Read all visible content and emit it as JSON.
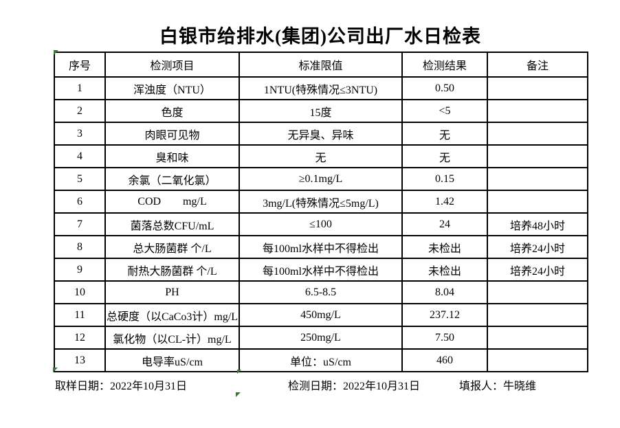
{
  "page": {
    "title": "白银市给排水(集团)公司出厂水日检表"
  },
  "table": {
    "headers": [
      "序号",
      "检测项目",
      "标准限值",
      "检测结果",
      "备注"
    ],
    "rows": [
      {
        "no": "1",
        "item": "浑浊度（NTU）",
        "limit": "1NTU(特殊情况≤3NTU)",
        "result": "0.50",
        "remark": ""
      },
      {
        "no": "2",
        "item": "色度",
        "limit": "15度",
        "result": "<5",
        "remark": ""
      },
      {
        "no": "3",
        "item": "肉眼可见物",
        "limit": "无异臭、异味",
        "result": "无",
        "remark": ""
      },
      {
        "no": "4",
        "item": "臭和味",
        "limit": "无",
        "result": "无",
        "remark": ""
      },
      {
        "no": "5",
        "item": "余氯（二氧化氯）",
        "limit": "≥0.1mg/L",
        "result": "0.15",
        "remark": ""
      },
      {
        "no": "6",
        "item": "COD        mg/L",
        "limit": "3mg/L(特殊情况≤5mg/L)",
        "result": "1.42",
        "remark": ""
      },
      {
        "no": "7",
        "item": "菌落总数CFU/mL",
        "limit": "≤100",
        "result": "24",
        "remark": "培养48小时"
      },
      {
        "no": "8",
        "item": "总大肠菌群 个/L",
        "limit": "每100ml水样中不得检出",
        "result": "未检出",
        "remark": "培养24小时"
      },
      {
        "no": "9",
        "item": "耐热大肠菌群 个/L",
        "limit": "每100ml水样中不得检出",
        "result": "未检出",
        "remark": "培养24小时"
      },
      {
        "no": "10",
        "item": "PH",
        "limit": "6.5-8.5",
        "result": "8.04",
        "remark": ""
      },
      {
        "no": "11",
        "item": "总硬度（以CaCo3计）mg/L",
        "limit": "450mg/L",
        "result": "237.12",
        "remark": ""
      },
      {
        "no": "12",
        "item": "氯化物（以CL-计）mg/L",
        "limit": "250mg/L",
        "result": "7.50",
        "remark": ""
      },
      {
        "no": "13",
        "item": "电导率uS/cm",
        "limit": "单位：uS/cm",
        "result": "460",
        "remark": ""
      }
    ]
  },
  "footer": {
    "sampling": "取样日期：2022年10月31日",
    "test": "检测日期：2022年10月31日",
    "reporter": "填报人：牛晓维"
  },
  "colors": {
    "marker_green": "#2e7d32",
    "border_black": "#000000"
  }
}
